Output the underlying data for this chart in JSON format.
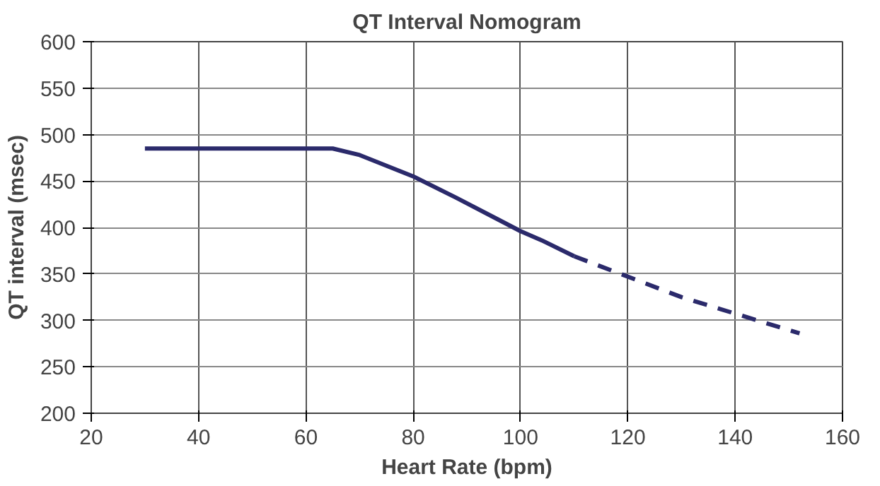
{
  "chart_data": {
    "type": "line",
    "title": "QT Interval Nomogram",
    "xlabel": "Heart Rate (bpm)",
    "ylabel": "QT interval (msec)",
    "xlim": [
      20,
      160
    ],
    "xticks": [
      20,
      40,
      60,
      80,
      100,
      120,
      140,
      160
    ],
    "ylim": [
      200,
      600
    ],
    "yticks": [
      200,
      250,
      300,
      350,
      400,
      450,
      500,
      550,
      600
    ],
    "grid": true,
    "series": [
      {
        "color": "#2b2a6b",
        "line_style": "solid",
        "x": [
          30,
          65,
          70,
          80,
          88,
          95,
          100,
          104,
          110
        ],
        "values": [
          485,
          485,
          478,
          455,
          432,
          411,
          396,
          386,
          369
        ]
      },
      {
        "color": "#2b2a6b",
        "line_style": "dashed",
        "x": [
          110,
          130,
          152
        ],
        "values": [
          369,
          325,
          286
        ]
      }
    ]
  }
}
